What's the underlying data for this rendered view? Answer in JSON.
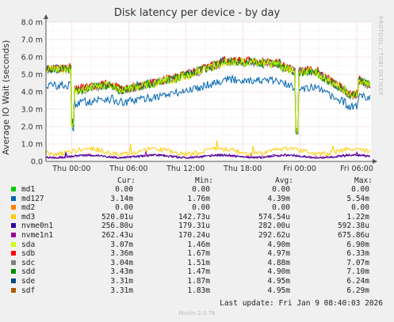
{
  "chart_data": {
    "type": "line",
    "title": "Disk latency per device - by day",
    "ylabel": "Average IO Wait (seconds)",
    "side_label": "RRDTOOL / TOBI OETIKER",
    "ylim": [
      0,
      8.0
    ],
    "y_ticks": [
      {
        "value": 0,
        "label": "0.0"
      },
      {
        "value": 1.0,
        "label": "1.0 m"
      },
      {
        "value": 2.0,
        "label": "2.0 m"
      },
      {
        "value": 3.0,
        "label": "3.0 m"
      },
      {
        "value": 4.0,
        "label": "4.0 m"
      },
      {
        "value": 5.0,
        "label": "5.0 m"
      },
      {
        "value": 6.0,
        "label": "6.0 m"
      },
      {
        "value": 7.0,
        "label": "7.0 m"
      },
      {
        "value": 8.0,
        "label": "8.0 m"
      }
    ],
    "x_range_hours": [
      -2.7,
      31.5
    ],
    "x_ticks": [
      {
        "hour": 0,
        "label": "Thu 00:00"
      },
      {
        "hour": 6,
        "label": "Thu 06:00"
      },
      {
        "hour": 12,
        "label": "Thu 12:00"
      },
      {
        "hour": 18,
        "label": "Thu 18:00"
      },
      {
        "hour": 24,
        "label": "Fri 00:00"
      },
      {
        "hour": 30,
        "label": "Fri 06:00"
      }
    ],
    "grid": true,
    "columns": [
      "Cur:",
      "Min:",
      "Avg:",
      "Max:"
    ],
    "series": [
      {
        "name": "md1",
        "color": "#00cc00",
        "cur": "0.00",
        "min": "0.00",
        "avg": "0.00",
        "max": "0.00"
      },
      {
        "name": "md127",
        "color": "#0066b3",
        "cur": "3.14m",
        "min": "1.76m",
        "avg": "4.39m",
        "max": "5.54m"
      },
      {
        "name": "md2",
        "color": "#ff8000",
        "cur": "0.00",
        "min": "0.00",
        "avg": "0.00",
        "max": "0.00"
      },
      {
        "name": "md3",
        "color": "#ffcc00",
        "cur": "520.01u",
        "min": "142.73u",
        "avg": "574.54u",
        "max": "1.22m"
      },
      {
        "name": "nvme0n1",
        "color": "#330099",
        "cur": "256.80u",
        "min": "179.31u",
        "avg": "282.00u",
        "max": "592.38u"
      },
      {
        "name": "nvme1n1",
        "color": "#990099",
        "cur": "262.43u",
        "min": "170.24u",
        "avg": "292.62u",
        "max": "675.86u"
      },
      {
        "name": "sda",
        "color": "#ccff00",
        "cur": "3.07m",
        "min": "1.46m",
        "avg": "4.90m",
        "max": "6.90m"
      },
      {
        "name": "sdb",
        "color": "#ff0000",
        "cur": "3.36m",
        "min": "1.67m",
        "avg": "4.97m",
        "max": "6.33m"
      },
      {
        "name": "sdc",
        "color": "#808080",
        "cur": "3.04m",
        "min": "1.51m",
        "avg": "4.88m",
        "max": "7.07m"
      },
      {
        "name": "sdd",
        "color": "#008f00",
        "cur": "3.43m",
        "min": "1.47m",
        "avg": "4.90m",
        "max": "7.10m"
      },
      {
        "name": "sde",
        "color": "#00487d",
        "cur": "3.31m",
        "min": "1.87m",
        "avg": "4.95m",
        "max": "6.24m"
      },
      {
        "name": "sdf",
        "color": "#b35a00",
        "cur": "3.31m",
        "min": "1.83m",
        "avg": "4.95m",
        "max": "6.29m"
      }
    ]
  },
  "footer": {
    "last_update": "Last update: Fri Jan  9 08:40:03 2026",
    "version": "Munin 2.0.76"
  }
}
